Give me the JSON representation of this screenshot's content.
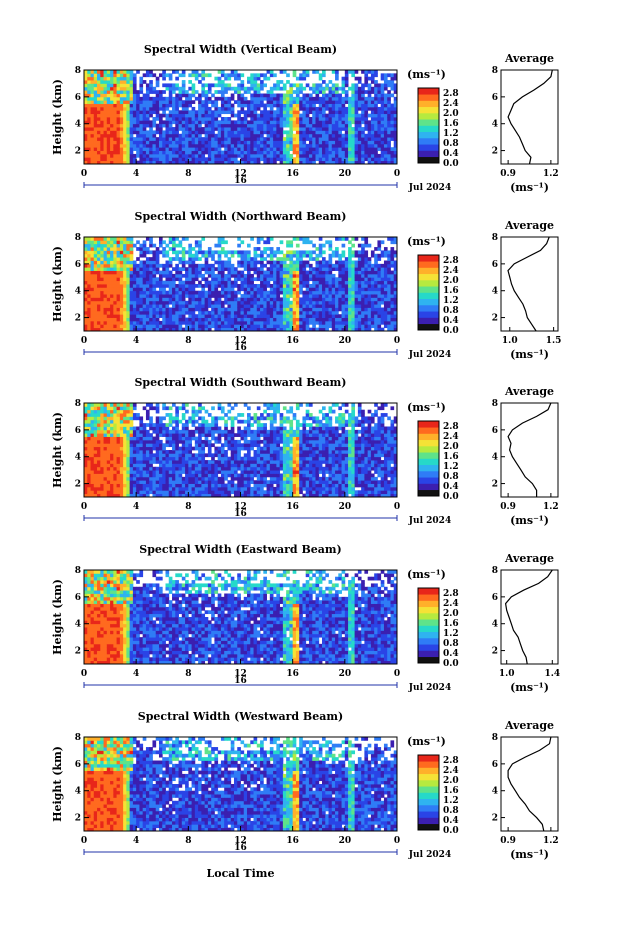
{
  "figure": {
    "x_axis_title": "Local Time",
    "date_label": "Jul 2024",
    "day_label": "16"
  },
  "colorbar": {
    "unit_label": "(ms⁻¹)",
    "colors": [
      "#111111",
      "#3b1fb0",
      "#2a44e6",
      "#2f7cf6",
      "#2fb3f0",
      "#26d9c9",
      "#5ee38a",
      "#b6ea3f",
      "#f5e236",
      "#ffb02a",
      "#ff6a1f",
      "#e8261a"
    ]
  },
  "chart_data": [
    {
      "type": "heatmap",
      "title": "Spectral Width (Vertical Beam)",
      "ylabel": "Height (km)",
      "xlim": [
        0,
        24
      ],
      "ylim": [
        1,
        8
      ],
      "x_ticks": [
        "0",
        "4",
        "8",
        "12",
        "16",
        "20",
        "0"
      ],
      "y_ticks": [
        "2",
        "4",
        "6",
        "8"
      ],
      "colorbar_ticks": [
        "0.0",
        "0.4",
        "0.8",
        "1.2",
        "1.6",
        "2.0",
        "2.4",
        "2.8"
      ],
      "colorbar_range": [
        0,
        3.0
      ],
      "avg_profile": {
        "title": "Average",
        "xlabel": "(ms⁻¹)",
        "x_ticks": [
          "0.9",
          "1.2"
        ],
        "xlim": [
          0.85,
          1.25
        ],
        "ylim": [
          1,
          8
        ],
        "y_ticks": [
          "2",
          "4",
          "6",
          "8"
        ],
        "points": [
          [
            1.05,
            1.0
          ],
          [
            1.06,
            1.5
          ],
          [
            1.02,
            2.0
          ],
          [
            1.0,
            2.5
          ],
          [
            0.98,
            3.0
          ],
          [
            0.95,
            3.5
          ],
          [
            0.92,
            4.0
          ],
          [
            0.9,
            4.5
          ],
          [
            0.92,
            5.0
          ],
          [
            0.94,
            5.5
          ],
          [
            1.0,
            6.0
          ],
          [
            1.08,
            6.5
          ],
          [
            1.15,
            7.0
          ],
          [
            1.2,
            7.5
          ],
          [
            1.21,
            8.0
          ]
        ]
      }
    },
    {
      "type": "heatmap",
      "title": "Spectral Width (Northward Beam)",
      "ylabel": "Height (km)",
      "xlim": [
        0,
        24
      ],
      "ylim": [
        1,
        8
      ],
      "x_ticks": [
        "0",
        "4",
        "8",
        "12",
        "16",
        "20",
        "0"
      ],
      "y_ticks": [
        "2",
        "4",
        "6",
        "8"
      ],
      "colorbar_ticks": [
        "0.0",
        "0.4",
        "0.8",
        "1.2",
        "1.6",
        "2.0",
        "2.4",
        "2.8"
      ],
      "colorbar_range": [
        0,
        3.0
      ],
      "avg_profile": {
        "title": "Average",
        "xlabel": "(ms⁻¹)",
        "x_ticks": [
          "1.0",
          "1.5"
        ],
        "xlim": [
          0.9,
          1.55
        ],
        "ylim": [
          1,
          8
        ],
        "y_ticks": [
          "2",
          "4",
          "6",
          "8"
        ],
        "points": [
          [
            1.3,
            1.0
          ],
          [
            1.25,
            1.5
          ],
          [
            1.2,
            2.0
          ],
          [
            1.18,
            2.5
          ],
          [
            1.15,
            3.0
          ],
          [
            1.1,
            3.5
          ],
          [
            1.05,
            4.0
          ],
          [
            1.02,
            4.5
          ],
          [
            1.0,
            5.0
          ],
          [
            0.98,
            5.5
          ],
          [
            1.05,
            6.0
          ],
          [
            1.2,
            6.5
          ],
          [
            1.35,
            7.0
          ],
          [
            1.42,
            7.5
          ],
          [
            1.45,
            8.0
          ]
        ]
      }
    },
    {
      "type": "heatmap",
      "title": "Spectral Width (Southward Beam)",
      "ylabel": "Height (km)",
      "xlim": [
        0,
        24
      ],
      "ylim": [
        1,
        8
      ],
      "x_ticks": [
        "0",
        "4",
        "8",
        "12",
        "16",
        "20",
        "0"
      ],
      "y_ticks": [
        "2",
        "4",
        "6",
        "8"
      ],
      "colorbar_ticks": [
        "0.0",
        "0.4",
        "0.8",
        "1.2",
        "1.6",
        "2.0",
        "2.4",
        "2.8"
      ],
      "colorbar_range": [
        0,
        3.0
      ],
      "avg_profile": {
        "title": "Average",
        "xlabel": "(ms⁻¹)",
        "x_ticks": [
          "0.9",
          "1.2"
        ],
        "xlim": [
          0.85,
          1.25
        ],
        "ylim": [
          1,
          8
        ],
        "y_ticks": [
          "2",
          "4",
          "6",
          "8"
        ],
        "points": [
          [
            1.1,
            1.0
          ],
          [
            1.1,
            1.5
          ],
          [
            1.07,
            2.0
          ],
          [
            1.02,
            2.5
          ],
          [
            0.99,
            3.0
          ],
          [
            0.96,
            3.5
          ],
          [
            0.93,
            4.0
          ],
          [
            0.91,
            4.5
          ],
          [
            0.92,
            5.0
          ],
          [
            0.9,
            5.5
          ],
          [
            0.93,
            6.0
          ],
          [
            1.0,
            6.5
          ],
          [
            1.1,
            7.0
          ],
          [
            1.18,
            7.5
          ],
          [
            1.2,
            8.0
          ]
        ]
      }
    },
    {
      "type": "heatmap",
      "title": "Spectral Width (Eastward Beam)",
      "ylabel": "Height (km)",
      "xlim": [
        0,
        24
      ],
      "ylim": [
        1,
        8
      ],
      "x_ticks": [
        "0",
        "4",
        "8",
        "12",
        "16",
        "20",
        "0"
      ],
      "y_ticks": [
        "2",
        "4",
        "6",
        "8"
      ],
      "colorbar_ticks": [
        "0.0",
        "0.4",
        "0.8",
        "1.2",
        "1.6",
        "2.0",
        "2.4",
        "2.8"
      ],
      "colorbar_range": [
        0,
        3.0
      ],
      "avg_profile": {
        "title": "Average",
        "xlabel": "(ms⁻¹)",
        "x_ticks": [
          "1.0",
          "1.4"
        ],
        "xlim": [
          0.95,
          1.45
        ],
        "ylim": [
          1,
          8
        ],
        "y_ticks": [
          "2",
          "4",
          "6",
          "8"
        ],
        "points": [
          [
            1.18,
            1.0
          ],
          [
            1.17,
            1.5
          ],
          [
            1.14,
            2.0
          ],
          [
            1.12,
            2.5
          ],
          [
            1.1,
            3.0
          ],
          [
            1.06,
            3.5
          ],
          [
            1.04,
            4.0
          ],
          [
            1.02,
            4.5
          ],
          [
            1.0,
            5.0
          ],
          [
            0.99,
            5.5
          ],
          [
            1.04,
            6.0
          ],
          [
            1.15,
            6.5
          ],
          [
            1.28,
            7.0
          ],
          [
            1.36,
            7.5
          ],
          [
            1.4,
            8.0
          ]
        ]
      }
    },
    {
      "type": "heatmap",
      "title": "Spectral Width (Westward Beam)",
      "ylabel": "Height (km)",
      "xlim": [
        0,
        24
      ],
      "ylim": [
        1,
        8
      ],
      "x_ticks": [
        "0",
        "4",
        "8",
        "12",
        "16",
        "20",
        "0"
      ],
      "y_ticks": [
        "2",
        "4",
        "6",
        "8"
      ],
      "colorbar_ticks": [
        "0.0",
        "0.4",
        "0.8",
        "1.2",
        "1.6",
        "2.0",
        "2.4",
        "2.8"
      ],
      "colorbar_range": [
        0,
        3.0
      ],
      "avg_profile": {
        "title": "Average",
        "xlabel": "(ms⁻¹)",
        "x_ticks": [
          "0.9",
          "1.2"
        ],
        "xlim": [
          0.85,
          1.25
        ],
        "ylim": [
          1,
          8
        ],
        "y_ticks": [
          "2",
          "4",
          "6",
          "8"
        ],
        "points": [
          [
            1.15,
            1.0
          ],
          [
            1.14,
            1.5
          ],
          [
            1.1,
            2.0
          ],
          [
            1.05,
            2.5
          ],
          [
            1.02,
            3.0
          ],
          [
            0.98,
            3.5
          ],
          [
            0.95,
            4.0
          ],
          [
            0.92,
            4.5
          ],
          [
            0.9,
            5.0
          ],
          [
            0.9,
            5.5
          ],
          [
            0.93,
            6.0
          ],
          [
            1.02,
            6.5
          ],
          [
            1.12,
            7.0
          ],
          [
            1.19,
            7.5
          ],
          [
            1.2,
            8.0
          ]
        ]
      }
    }
  ]
}
